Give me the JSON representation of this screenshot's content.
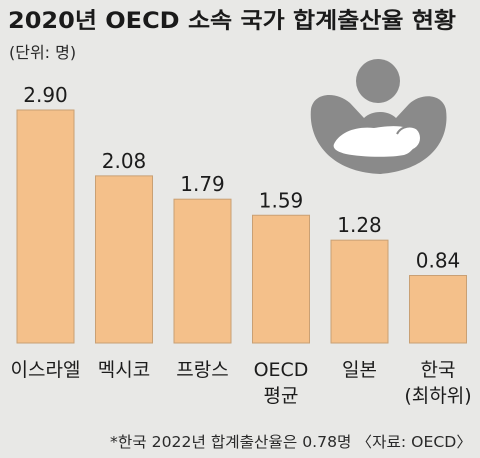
{
  "colors": {
    "background": "#e8e8e6",
    "bar": "#f4c08a",
    "bar_stroke": "#c9a074",
    "icon": "#8a8a8a"
  },
  "icon": "mother-holding-baby-icon",
  "chart_data": {
    "type": "bar",
    "title": "2020년 OECD 소속 국가 합계출산율 현황",
    "unit_label": "(단위: 명)",
    "categories": [
      [
        "이스라엘"
      ],
      [
        "멕시코"
      ],
      [
        "프랑스"
      ],
      [
        "OECD",
        "평균"
      ],
      [
        "일본"
      ],
      [
        "한국",
        "(최하위)"
      ]
    ],
    "values": [
      2.9,
      2.08,
      1.79,
      1.59,
      1.28,
      0.84
    ],
    "value_labels": [
      "2.90",
      "2.08",
      "1.79",
      "1.59",
      "1.28",
      "0.84"
    ],
    "ylim": [
      0,
      2.9
    ],
    "grid": false,
    "footnote": "*한국 2022년 합계출산율은 0.78명 〈자료: OECD〉"
  }
}
